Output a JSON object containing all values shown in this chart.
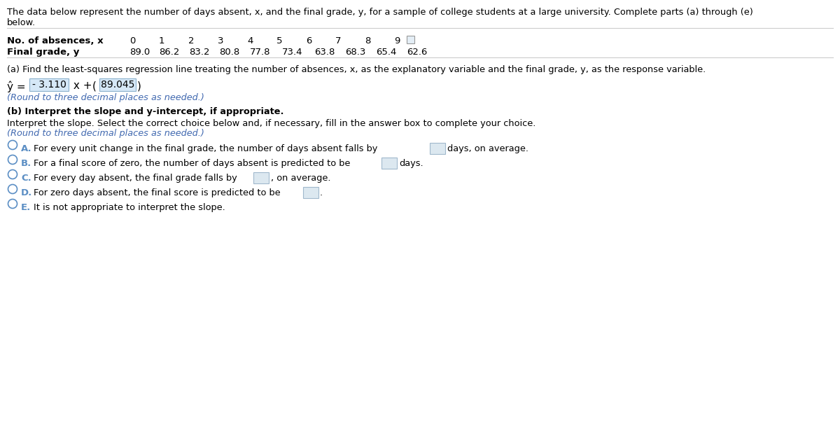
{
  "title_line1": "The data below represent the number of days absent, x, and the final grade, y, for a sample of college students at a large university. Complete parts (a) through (e)",
  "title_line2": "below.",
  "header_x": "No. of absences, x",
  "header_y": "Final grade, y",
  "x_vals": [
    "0",
    "1",
    "2",
    "3",
    "4",
    "5",
    "6",
    "7",
    "8",
    "9"
  ],
  "y_vals": [
    "89.0",
    "86.2",
    "83.2",
    "80.8",
    "77.8",
    "73.4",
    "63.8",
    "68.3",
    "65.4",
    "62.6"
  ],
  "part_a": "(a) Find the least-squares regression line treating the number of absences, x, as the explanatory variable and the final grade, y, as the response variable.",
  "eq_prefix": "ŷ = ",
  "eq_highlighted": " - 3.110 ",
  "eq_mid": "x + ",
  "eq_boxed": "89.045",
  "eq_note": "(Round to three decimal places as needed.)",
  "part_b": "(b) Interpret the slope and y-intercept, if appropriate.",
  "interp_line1": "Interpret the slope. Select the correct choice below and, if necessary, fill in the answer box to complete your choice.",
  "interp_line2": "(Round to three decimal places as needed.)",
  "choice_A_pre": "For every unit change in the final grade, the number of days absent falls by",
  "choice_A_post": "days, on average.",
  "choice_B_pre": "For a final score of zero, the number of days absent is predicted to be",
  "choice_B_post": "days.",
  "choice_C_pre": "For every day absent, the final grade falls by",
  "choice_C_post": ", on average.",
  "choice_D_pre": "For zero days absent, the final score is predicted to be",
  "choice_D_post": ".",
  "choice_E": "It is not appropriate to interpret the slope.",
  "bg": "#ffffff",
  "black": "#000000",
  "blue": "#4169b0",
  "radio_blue": "#5b8ec4",
  "highlight_bg": "#d6e8f7",
  "box_bg": "#dce8f0",
  "box_border": "#a0b8cc"
}
